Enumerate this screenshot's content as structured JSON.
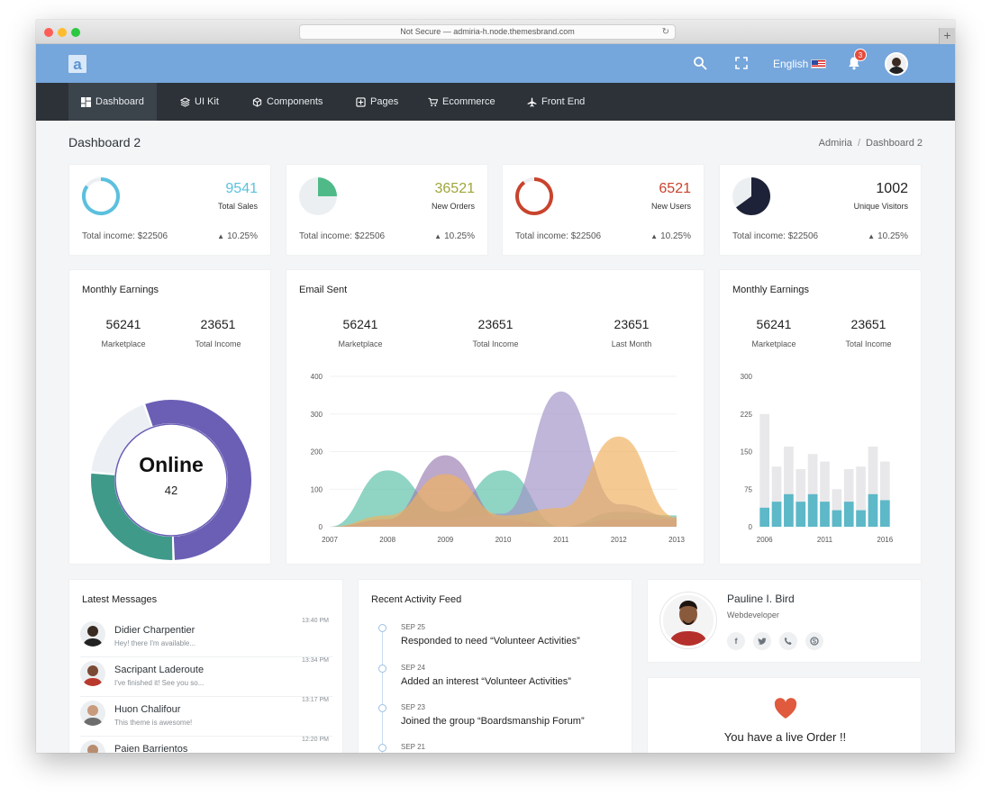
{
  "browser": {
    "url_text": "Not Secure — admiria-h.node.themesbrand.com",
    "reload_icon": "reload-icon",
    "new_tab_label": "+"
  },
  "topbar": {
    "logo_letter": "a",
    "language": "English",
    "notification_count": "3",
    "icons": [
      "search-icon",
      "fullscreen-icon",
      "bell-icon"
    ]
  },
  "nav": {
    "items": [
      {
        "label": "Dashboard",
        "icon": "dashboard-icon",
        "active": true
      },
      {
        "label": "UI Kit",
        "icon": "layers-icon"
      },
      {
        "label": "Components",
        "icon": "cube-icon"
      },
      {
        "label": "Pages",
        "icon": "pages-icon"
      },
      {
        "label": "Ecommerce",
        "icon": "cart-icon"
      },
      {
        "label": "Front End",
        "icon": "plane-icon"
      }
    ]
  },
  "page": {
    "title": "Dashboard 2",
    "breadcrumb": [
      "Admiria",
      "Dashboard 2"
    ]
  },
  "stats": [
    {
      "value": "9541",
      "label": "Total Sales",
      "income": "Total income: $22506",
      "pct": "10.25%",
      "color": "#5bc0de",
      "fill": 0.85
    },
    {
      "value": "36521",
      "label": "New Orders",
      "income": "Total income: $22506",
      "pct": "10.25%",
      "color": "#a0a53b",
      "fill": 0.25
    },
    {
      "value": "6521",
      "label": "New Users",
      "income": "Total income: $22506",
      "pct": "10.25%",
      "color": "#c9432c",
      "fill": 0.9
    },
    {
      "value": "1002",
      "label": "Unique Visitors",
      "income": "Total income: $22506",
      "pct": "10.25%",
      "color": "#222222",
      "fill": 0.65
    }
  ],
  "earnings_left": {
    "title": "Monthly Earnings",
    "kpis": [
      {
        "num": "56241",
        "lbl": "Marketplace"
      },
      {
        "num": "23651",
        "lbl": "Total Income"
      }
    ],
    "donut_label": "Online",
    "donut_value": "42"
  },
  "email": {
    "title": "Email Sent",
    "kpis": [
      {
        "num": "56241",
        "lbl": "Marketplace"
      },
      {
        "num": "23651",
        "lbl": "Total Income"
      },
      {
        "num": "23651",
        "lbl": "Last Month"
      }
    ]
  },
  "earnings_right": {
    "title": "Monthly Earnings",
    "kpis": [
      {
        "num": "56241",
        "lbl": "Marketplace"
      },
      {
        "num": "23651",
        "lbl": "Total Income"
      }
    ]
  },
  "chart_data": [
    {
      "type": "pie",
      "labels": [
        "",
        "",
        ""
      ],
      "values": [
        55,
        27,
        18
      ],
      "colors": [
        "#6a5fb5",
        "#3f9a8a",
        "#eceff4"
      ],
      "center_label": "Online",
      "center_value": "42"
    },
    {
      "type": "area",
      "x": [
        "2007",
        "2008",
        "2009",
        "2010",
        "2011",
        "2012",
        "2013"
      ],
      "ylim": [
        0,
        400
      ],
      "yticks": [
        0,
        100,
        200,
        300,
        400
      ],
      "series": [
        {
          "values": [
            0,
            150,
            40,
            150,
            0,
            40,
            30
          ],
          "color": "#5cbfa8"
        },
        {
          "values": [
            0,
            20,
            190,
            20,
            0,
            20,
            20
          ],
          "color": "#9b7fb3"
        },
        {
          "values": [
            0,
            15,
            20,
            35,
            360,
            60,
            25
          ],
          "color": "#a093c7"
        },
        {
          "values": [
            0,
            30,
            140,
            30,
            50,
            240,
            25
          ],
          "color": "#f0b15e"
        }
      ]
    },
    {
      "type": "bar",
      "x": [
        "2006",
        "2007",
        "2008",
        "2009",
        "2010",
        "2011",
        "2012",
        "2013",
        "2014",
        "2015",
        "2016"
      ],
      "xtick_labels": [
        "2006",
        "2011",
        "2016"
      ],
      "ylim": [
        0,
        300
      ],
      "yticks": [
        0,
        75,
        150,
        225,
        300
      ],
      "series": [
        {
          "values": [
            225,
            120,
            160,
            115,
            145,
            130,
            75,
            115,
            120,
            160,
            130
          ],
          "color": "#e8e8ea"
        },
        {
          "values": [
            38,
            50,
            65,
            50,
            65,
            50,
            33,
            50,
            33,
            65,
            53
          ],
          "color": "#5db8c8"
        }
      ]
    }
  ],
  "messages": {
    "title": "Latest Messages",
    "items": [
      {
        "name": "Didier Charpentier",
        "text": "Hey! there I'm available...",
        "time": "13:40 PM"
      },
      {
        "name": "Sacripant Laderoute",
        "text": "I've finished it! See you so...",
        "time": "13:34 PM"
      },
      {
        "name": "Huon Chalifour",
        "text": "This theme is awesome!",
        "time": "13:17 PM"
      },
      {
        "name": "Paien Barrientos",
        "text": "",
        "time": "12:20 PM"
      }
    ]
  },
  "activity": {
    "title": "Recent Activity Feed",
    "items": [
      {
        "date": "SEP 25",
        "text": "Responded to need “Volunteer Activities”"
      },
      {
        "date": "SEP 24",
        "text": "Added an interest “Volunteer Activities”"
      },
      {
        "date": "SEP 23",
        "text": "Joined the group “Boardsmanship Forum”"
      },
      {
        "date": "SEP 21",
        "text": ""
      }
    ]
  },
  "profile": {
    "name": "Pauline I. Bird",
    "role": "Webdeveloper",
    "socials": [
      "facebook-icon",
      "twitter-icon",
      "phone-icon",
      "skype-icon"
    ]
  },
  "order": {
    "text": "You have a live Order !!",
    "heart_color": "#e05a3d"
  }
}
